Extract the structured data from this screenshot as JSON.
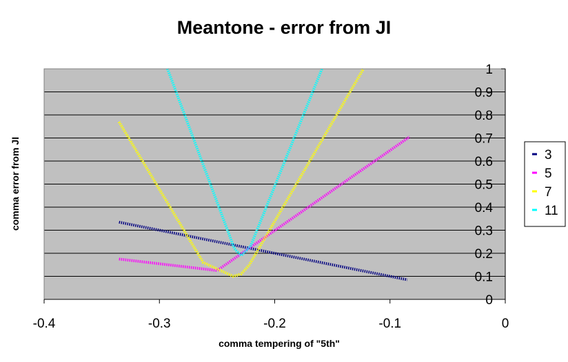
{
  "chart_data": {
    "type": "line",
    "title": "Meantone - error from JI",
    "xlabel": "comma tempering of \"5th\"",
    "ylabel": "comma error from JI",
    "xlim": [
      -0.4,
      0
    ],
    "ylim": [
      0,
      1
    ],
    "x_ticks": [
      "-0.4",
      "-0.3",
      "-0.2",
      "-0.1",
      "0"
    ],
    "y_ticks": [
      "0",
      "0.1",
      "0.2",
      "0.3",
      "0.4",
      "0.5",
      "0.6",
      "0.7",
      "0.8",
      "0.9",
      "1"
    ],
    "grid": "horizontal",
    "plot_background": "#c0c0c0",
    "legend_position": "right",
    "series": [
      {
        "name": "3",
        "color": "#000080",
        "points": [
          [
            -0.335,
            0.335
          ],
          [
            -0.085,
            0.085
          ]
        ]
      },
      {
        "name": "5",
        "color": "#ff00ff",
        "points": [
          [
            -0.335,
            0.175
          ],
          [
            -0.25,
            0.125
          ],
          [
            -0.083,
            0.705
          ]
        ]
      },
      {
        "name": "7",
        "color": "#ffff00",
        "points": [
          [
            -0.335,
            0.77
          ],
          [
            -0.262,
            0.16
          ],
          [
            -0.236,
            0.1
          ],
          [
            -0.229,
            0.11
          ],
          [
            -0.222,
            0.15
          ],
          [
            -0.123,
            1.0
          ]
        ]
      },
      {
        "name": "11",
        "color": "#00ffff",
        "points": [
          [
            -0.293,
            1.0
          ],
          [
            -0.235,
            0.22
          ],
          [
            -0.229,
            0.19
          ],
          [
            -0.221,
            0.23
          ],
          [
            -0.159,
            1.0
          ]
        ]
      }
    ]
  }
}
